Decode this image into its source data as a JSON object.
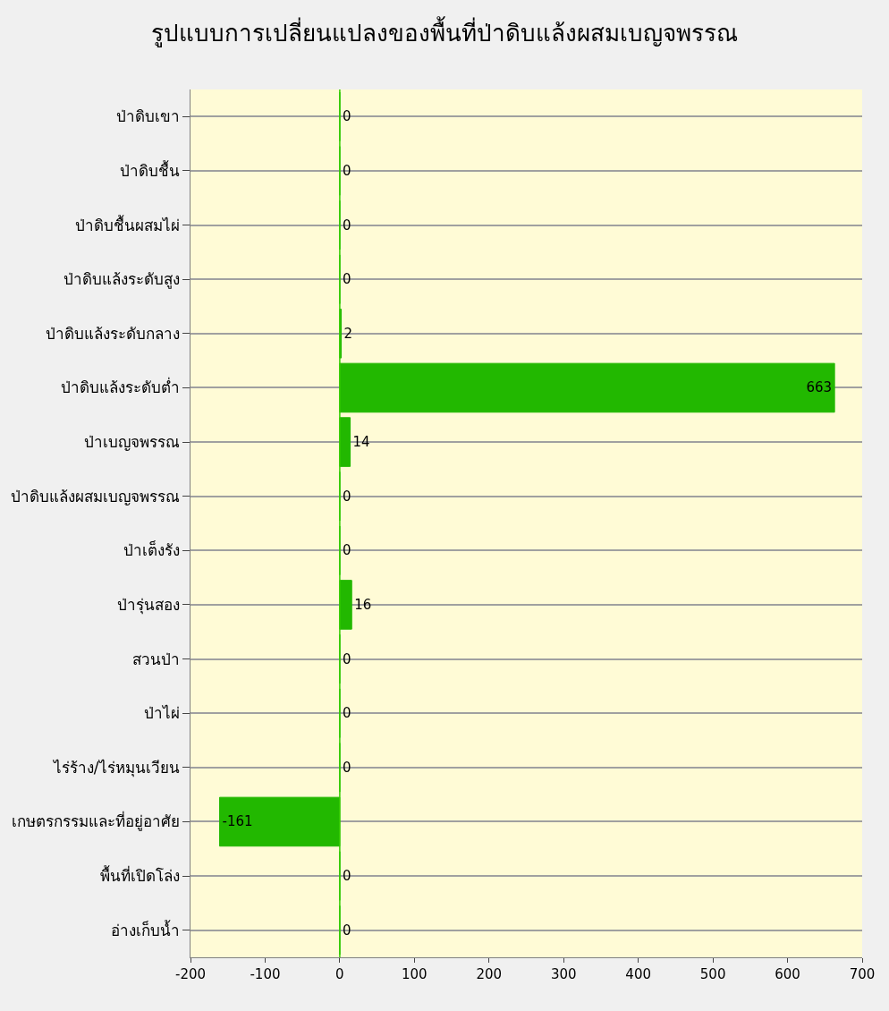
{
  "chart_data": {
    "type": "bar",
    "orientation": "horizontal",
    "title": "รูปแบบการเปลี่ยนแปลงของพื้นที่ป่าดิบแล้งผสมเบญจพรรณ",
    "categories": [
      "ป่าดิบเขา",
      "ป่าดิบชื้น",
      "ป่าดิบชื้นผสมไผ่",
      "ป่าดิบแล้งระดับสูง",
      "ป่าดิบแล้งระดับกลาง",
      "ป่าดิบแล้งระดับต่ำ",
      "ป่าเบญจพรรณ",
      "ป่าดิบแล้งผสมเบญจพรรณ",
      "ป่าเต็งรัง",
      "ป่ารุ่นสอง",
      "สวนป่า",
      "ป่าไผ่",
      "ไร่ร้าง/ไร่หมุนเวียน",
      "เกษตรกรรมและที่อยู่อาศัย",
      "พื้นที่เปิดโล่ง",
      "อ่างเก็บน้ำ"
    ],
    "values": [
      0,
      0,
      0,
      0,
      2,
      663,
      14,
      0,
      0,
      16,
      0,
      0,
      0,
      -161,
      0,
      0
    ],
    "color": "#22b800",
    "data_labels": true,
    "xlim": [
      -200,
      700
    ],
    "xticks": [
      -200,
      -100,
      0,
      100,
      200,
      300,
      400,
      500,
      600,
      700
    ],
    "grid": "y",
    "ref_lines": [
      {
        "axis": "x",
        "value": 0,
        "color": "#33cc00"
      }
    ]
  }
}
